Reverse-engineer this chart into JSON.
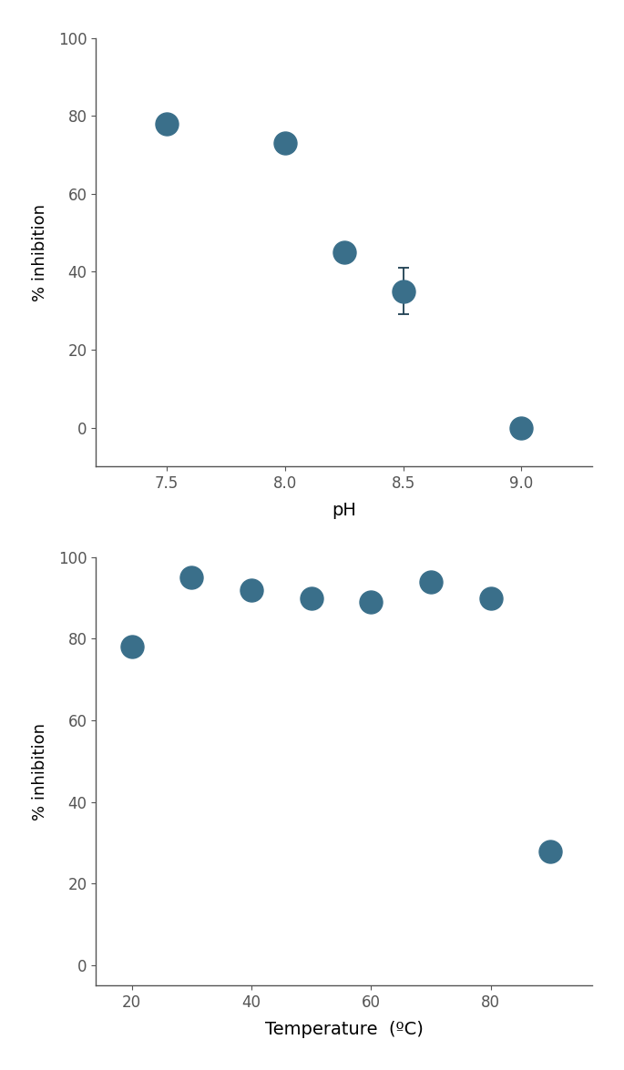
{
  "ph_x": [
    7.5,
    8.0,
    8.25,
    8.5,
    9.0
  ],
  "ph_y": [
    78.0,
    73.0,
    45.0,
    35.0,
    0.0
  ],
  "ph_yerr": [
    1.0,
    1.5,
    1.0,
    6.0,
    0.3
  ],
  "ph_xlabel": "pH",
  "ph_ylabel": "% inhibition",
  "ph_xlim": [
    7.2,
    9.3
  ],
  "ph_ylim": [
    -10,
    100
  ],
  "ph_yticks": [
    0,
    20,
    40,
    60,
    80,
    100
  ],
  "ph_xticks": [
    7.5,
    8.0,
    8.5,
    9.0
  ],
  "temp_x": [
    20,
    30,
    40,
    50,
    60,
    70,
    80,
    90
  ],
  "temp_y": [
    78.0,
    95.0,
    92.0,
    90.0,
    89.0,
    94.0,
    90.0,
    28.0
  ],
  "temp_yerr": [
    1.0,
    1.5,
    1.0,
    1.0,
    1.0,
    1.0,
    1.0,
    1.0
  ],
  "temp_xlabel": "Temperature  (ºC)",
  "temp_ylabel": "% inhibition",
  "temp_xlim": [
    14,
    97
  ],
  "temp_ylim": [
    -5,
    100
  ],
  "temp_yticks": [
    0,
    20,
    40,
    60,
    80,
    100
  ],
  "temp_xticks": [
    20,
    40,
    60,
    80
  ],
  "dot_color": "#3a6f8a",
  "dot_size": 18,
  "ecolor": "#1e3f50",
  "capsize": 4,
  "elinewidth": 1.3,
  "capthick": 1.3,
  "spine_color": "#555555",
  "tick_labelsize": 12,
  "xlabel_fontsize": 14,
  "ylabel_fontsize": 13
}
